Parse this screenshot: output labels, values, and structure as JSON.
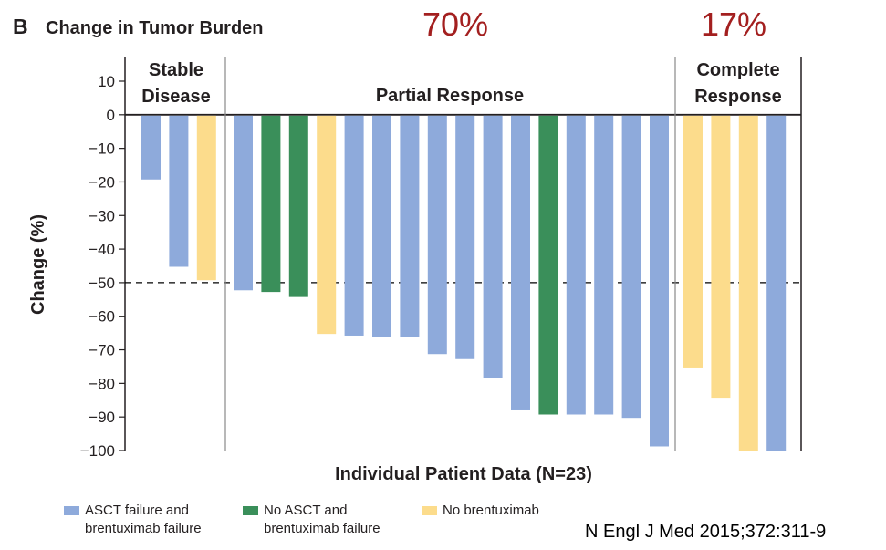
{
  "header": {
    "panel_letter": "B",
    "title": "Change in Tumor Burden",
    "pct_partial": "70%",
    "pct_complete": "17%"
  },
  "chart_data": {
    "type": "bar",
    "title": "Change in Tumor Burden",
    "xlabel": "Individual Patient Data (N=23)",
    "ylabel": "Change (%)",
    "ylim": [
      -100,
      10
    ],
    "yticks": [
      "10",
      "0",
      "−10",
      "−20",
      "−30",
      "−40",
      "−50",
      "−60",
      "−70",
      "−80",
      "−90",
      "−100"
    ],
    "reference_line": -50,
    "groups": [
      {
        "label_lines": [
          "Stable",
          "Disease"
        ],
        "start": 0,
        "end": 2
      },
      {
        "label_lines": [
          "Partial Response"
        ],
        "start": 3,
        "end": 18
      },
      {
        "label_lines": [
          "Complete",
          "Response"
        ],
        "start": 19,
        "end": 22
      }
    ],
    "values": [
      -19,
      -45,
      -49,
      -52,
      -52.5,
      -54,
      -65,
      -65.5,
      -66,
      -66,
      -71,
      -72.5,
      -78,
      -87.5,
      -89,
      -89,
      -89,
      -90,
      -98.5,
      -75,
      -84,
      -100,
      -100
    ],
    "categories": [
      "ASCT failure and brentuximab failure",
      "ASCT failure and brentuximab failure",
      "No brentuximab",
      "ASCT failure and brentuximab failure",
      "No ASCT and brentuximab failure",
      "No ASCT and brentuximab failure",
      "No brentuximab",
      "ASCT failure and brentuximab failure",
      "ASCT failure and brentuximab failure",
      "ASCT failure and brentuximab failure",
      "ASCT failure and brentuximab failure",
      "ASCT failure and brentuximab failure",
      "ASCT failure and brentuximab failure",
      "ASCT failure and brentuximab failure",
      "No ASCT and brentuximab failure",
      "ASCT failure and brentuximab failure",
      "ASCT failure and brentuximab failure",
      "ASCT failure and brentuximab failure",
      "ASCT failure and brentuximab failure",
      "No brentuximab",
      "No brentuximab",
      "No brentuximab",
      "ASCT failure and brentuximab failure"
    ],
    "legend": [
      {
        "label_lines": [
          "ASCT failure and",
          "brentuximab failure"
        ],
        "color": "#8eaadb"
      },
      {
        "label_lines": [
          "No ASCT and",
          "brentuximab failure"
        ],
        "color": "#3a8f5a"
      },
      {
        "label_lines": [
          "No brentuximab"
        ],
        "color": "#fcdc8c"
      }
    ],
    "legend_position": "bottom-left",
    "grid": false
  },
  "citation": "N Engl J Med 2015;372:311-9"
}
